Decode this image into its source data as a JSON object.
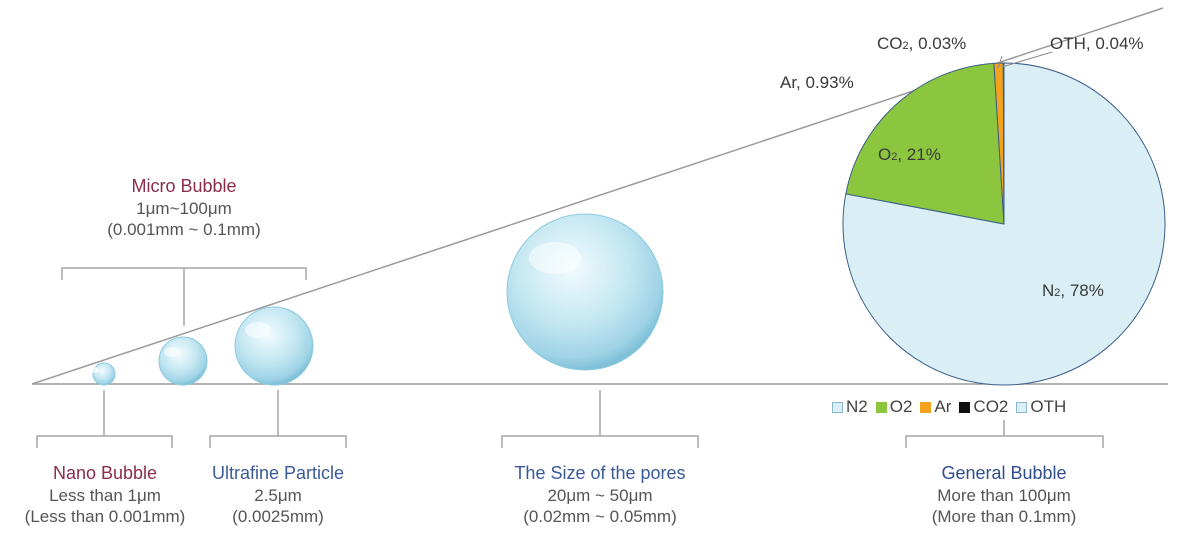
{
  "colors": {
    "micro": "#8b2c4a",
    "nano": "#8b2c4a",
    "ultrafine": "#3a5a9a",
    "pores": "#3a5a9a",
    "general": "#2f4f8f",
    "n2": "#d9eef5",
    "o2": "#8cc63f",
    "ar": "#f4a21c",
    "co2": "#111111",
    "oth": "#d9eef5"
  },
  "labels": {
    "micro": {
      "name": "Micro Bubble",
      "line1": "1μm~100μm",
      "line2": "(0.001mm ~ 0.1mm)"
    },
    "nano": {
      "name": "Nano Bubble",
      "line1": "Less than 1μm",
      "line2": "(Less than 0.001mm)"
    },
    "ultrafine": {
      "name": "Ultrafine Particle",
      "line1": "2.5μm",
      "line2": "(0.0025mm)"
    },
    "pores": {
      "name": "The Size of the pores",
      "line1": "20μm ~ 50μm",
      "line2": "(0.02mm ~ 0.05mm)"
    },
    "general": {
      "name": "General Bubble",
      "line1": "More than 100μm",
      "line2": "(More than 0.1mm)"
    }
  },
  "pie": {
    "labels": {
      "n2": {
        "sym": "N",
        "subs": "2",
        "val": ", 78%"
      },
      "o2": {
        "sym": "O",
        "subs": "2",
        "val": ", 21%"
      },
      "ar": {
        "text": "Ar, 0.93%"
      },
      "co2": {
        "sym": "CO",
        "subs": "2",
        "val": ", 0.03%"
      },
      "oth": {
        "text": "OTH, 0.04%"
      }
    },
    "legend": [
      "N2",
      "O2",
      "Ar",
      "CO2",
      "OTH"
    ]
  },
  "chart_data": {
    "type": "pie",
    "categories": [
      "N2",
      "O2",
      "Ar",
      "CO2",
      "OTH"
    ],
    "values": [
      78,
      21,
      0.93,
      0.03,
      0.04
    ],
    "legend": "bottom"
  }
}
